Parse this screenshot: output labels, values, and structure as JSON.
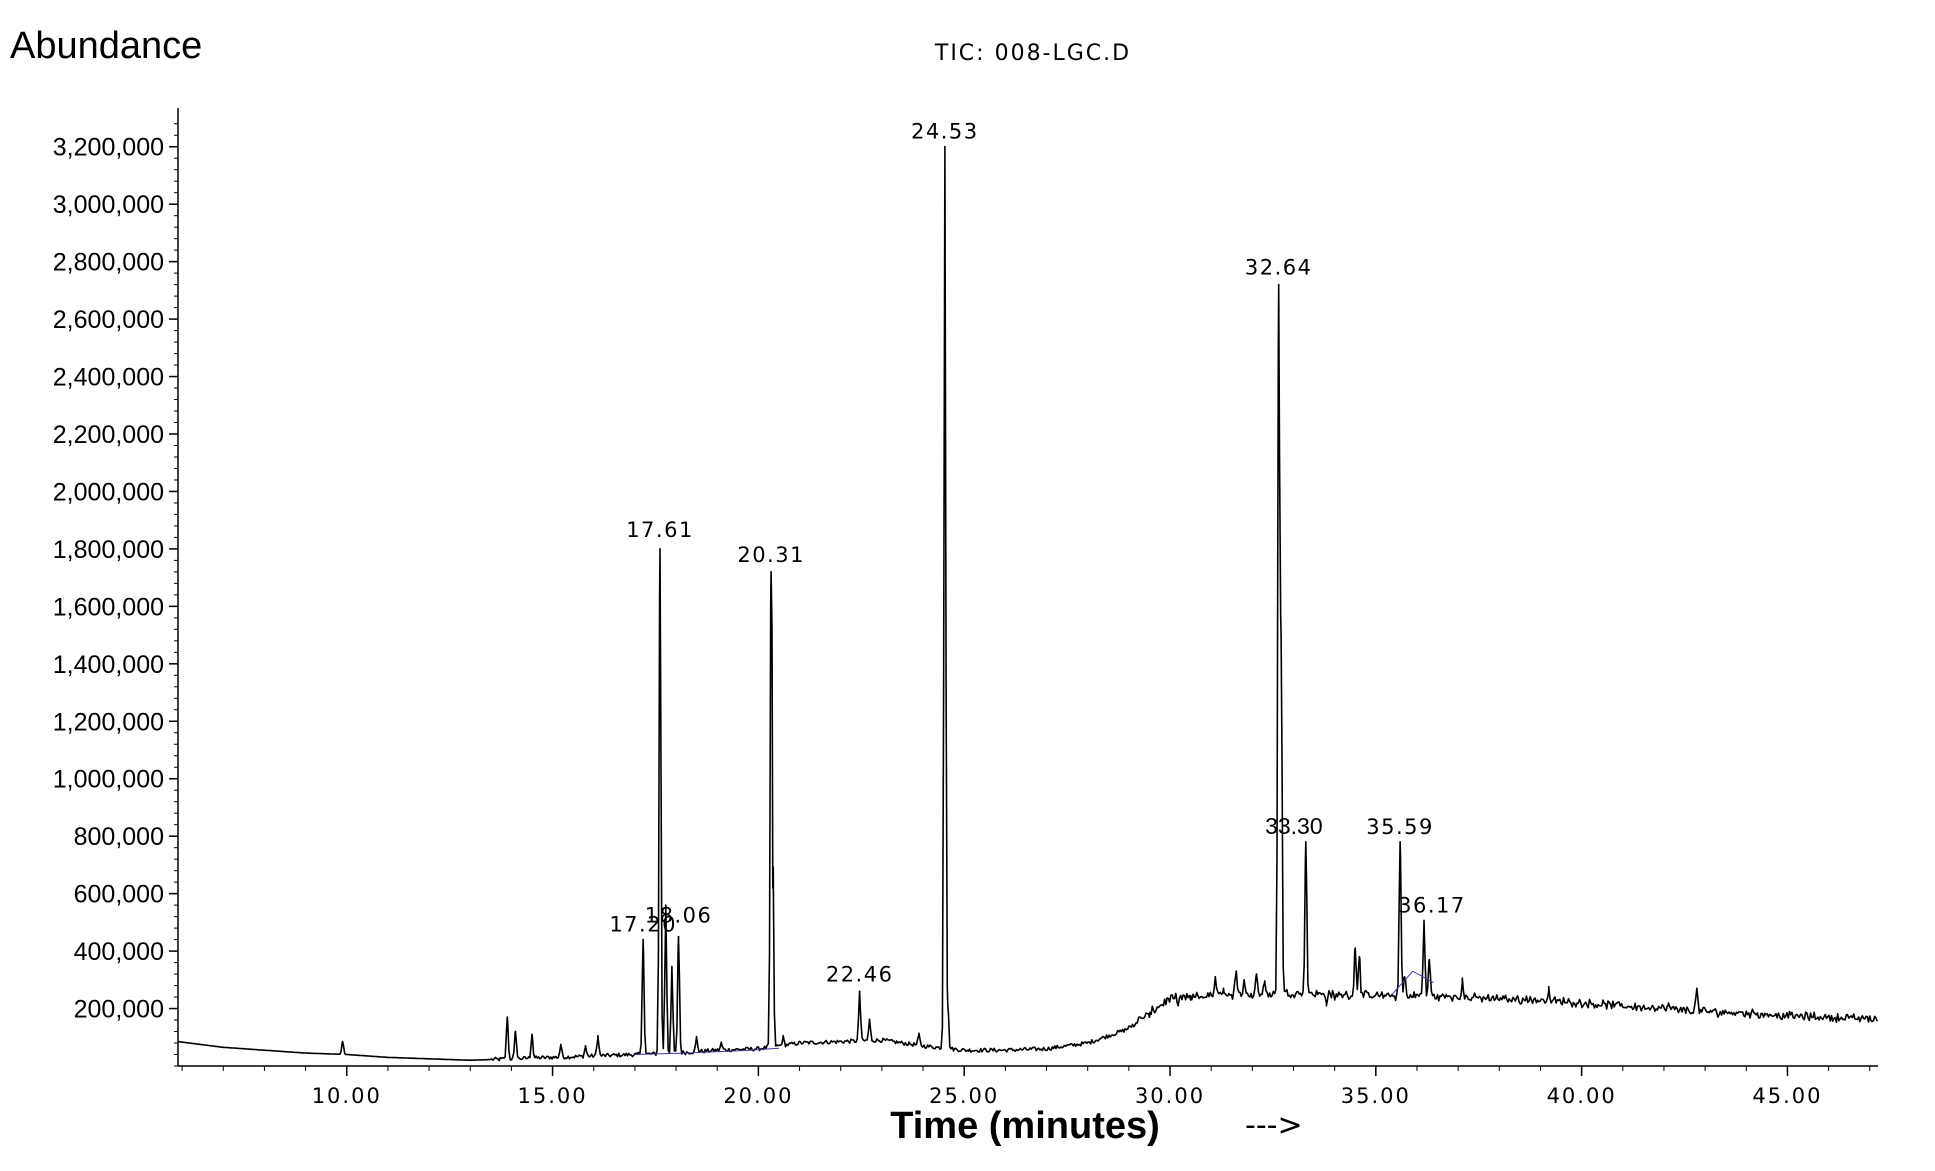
{
  "chart_data": {
    "type": "line",
    "title": "TIC: 008-LGC.D",
    "ylabel": "Abundance",
    "xlabel": "Time (minutes)",
    "xlabel_arrow": "--->",
    "xlim": [
      5.9,
      47.2
    ],
    "ylim": [
      0,
      3300000
    ],
    "grid": false,
    "y_tick_labels": [
      "200,000",
      "400,000",
      "600,000",
      "800,000",
      "1,000,000",
      "1,200,000",
      "1,400,000",
      "1,600,000",
      "1,800,000",
      "2,000,000",
      "2,200,000",
      "2,400,000",
      "2,600,000",
      "2,800,000",
      "3,000,000",
      "3,200,000"
    ],
    "y_tick_values": [
      200000,
      400000,
      600000,
      800000,
      1000000,
      1200000,
      1400000,
      1600000,
      1800000,
      2000000,
      2200000,
      2400000,
      2600000,
      2800000,
      3000000,
      3200000
    ],
    "x_tick_labels": [
      "10.00",
      "15.00",
      "20.00",
      "25.00",
      "30.00",
      "35.00",
      "40.00",
      "45.00"
    ],
    "x_tick_values": [
      10,
      15,
      20,
      25,
      30,
      35,
      40,
      45
    ],
    "series": [
      {
        "color": "#000000",
        "baseline": [
          [
            5.9,
            85000
          ],
          [
            7.0,
            65000
          ],
          [
            8.0,
            55000
          ],
          [
            9.0,
            45000
          ],
          [
            10.0,
            40000
          ],
          [
            11.0,
            30000
          ],
          [
            12.0,
            25000
          ],
          [
            13.0,
            20000
          ],
          [
            14.0,
            25000
          ],
          [
            15.0,
            30000
          ],
          [
            16.0,
            35000
          ],
          [
            17.0,
            40000
          ],
          [
            18.0,
            45000
          ],
          [
            19.0,
            55000
          ],
          [
            20.0,
            60000
          ],
          [
            21.0,
            80000
          ],
          [
            22.0,
            85000
          ],
          [
            23.0,
            90000
          ],
          [
            24.0,
            70000
          ],
          [
            25.0,
            55000
          ],
          [
            26.0,
            55000
          ],
          [
            27.0,
            60000
          ],
          [
            28.0,
            80000
          ],
          [
            29.0,
            130000
          ],
          [
            30.0,
            230000
          ],
          [
            31.0,
            240000
          ],
          [
            32.0,
            245000
          ],
          [
            33.0,
            250000
          ],
          [
            34.0,
            245000
          ],
          [
            35.0,
            240000
          ],
          [
            36.0,
            240000
          ],
          [
            37.0,
            235000
          ],
          [
            38.0,
            230000
          ],
          [
            39.0,
            225000
          ],
          [
            40.0,
            215000
          ],
          [
            41.0,
            205000
          ],
          [
            42.0,
            195000
          ],
          [
            43.0,
            185000
          ],
          [
            44.0,
            180000
          ],
          [
            45.0,
            170000
          ],
          [
            46.0,
            165000
          ],
          [
            47.2,
            160000
          ]
        ],
        "peaks": [
          [
            9.9,
            85000
          ],
          [
            13.9,
            170000
          ],
          [
            14.1,
            120000
          ],
          [
            14.5,
            110000
          ],
          [
            15.2,
            75000
          ],
          [
            15.8,
            70000
          ],
          [
            16.1,
            105000
          ],
          [
            17.2,
            440000
          ],
          [
            17.61,
            1800000
          ],
          [
            17.75,
            560000
          ],
          [
            17.9,
            340000
          ],
          [
            18.06,
            450000
          ],
          [
            18.5,
            100000
          ],
          [
            19.1,
            80000
          ],
          [
            20.31,
            1720000
          ],
          [
            20.35,
            620000
          ],
          [
            20.6,
            100000
          ],
          [
            22.46,
            260000
          ],
          [
            22.7,
            160000
          ],
          [
            23.9,
            110000
          ],
          [
            24.53,
            3200000
          ],
          [
            24.6,
            220000
          ],
          [
            29.2,
            150000
          ],
          [
            29.5,
            170000
          ],
          [
            30.2,
            210000
          ],
          [
            30.5,
            230000
          ],
          [
            31.1,
            310000
          ],
          [
            31.3,
            270000
          ],
          [
            31.6,
            320000
          ],
          [
            31.8,
            300000
          ],
          [
            32.1,
            320000
          ],
          [
            32.3,
            290000
          ],
          [
            32.64,
            2720000
          ],
          [
            32.7,
            1500000
          ],
          [
            33.3,
            780000
          ],
          [
            33.8,
            220000
          ],
          [
            34.0,
            230000
          ],
          [
            34.5,
            410000
          ],
          [
            34.6,
            380000
          ],
          [
            35.59,
            780000
          ],
          [
            35.7,
            310000
          ],
          [
            36.17,
            500000
          ],
          [
            36.3,
            370000
          ],
          [
            37.1,
            290000
          ],
          [
            39.2,
            260000
          ],
          [
            42.1,
            210000
          ],
          [
            42.8,
            270000
          ]
        ]
      }
    ],
    "annotations": [
      {
        "x": 17.2,
        "y": 440000,
        "label": "17.20",
        "style": "dotted"
      },
      {
        "x": 17.61,
        "y": 1800000,
        "label": "17.61",
        "style": "dotted"
      },
      {
        "x": 18.06,
        "y": 450000,
        "label": "18.06",
        "style": "dotted"
      },
      {
        "x": 20.31,
        "y": 1720000,
        "label": "20.31",
        "style": "dotted"
      },
      {
        "x": 22.46,
        "y": 260000,
        "label": "22.46",
        "style": "dotted"
      },
      {
        "x": 24.53,
        "y": 3200000,
        "label": "24.53",
        "style": "dotted"
      },
      {
        "x": 32.64,
        "y": 2720000,
        "label": "32.64",
        "style": "dotted"
      },
      {
        "x": 33.3,
        "y": 780000,
        "label": "33.30",
        "style": "plain"
      },
      {
        "x": 35.59,
        "y": 780000,
        "label": "35.59",
        "style": "dotted"
      },
      {
        "x": 36.17,
        "y": 500000,
        "label": "36.17",
        "style": "dotted"
      }
    ]
  }
}
